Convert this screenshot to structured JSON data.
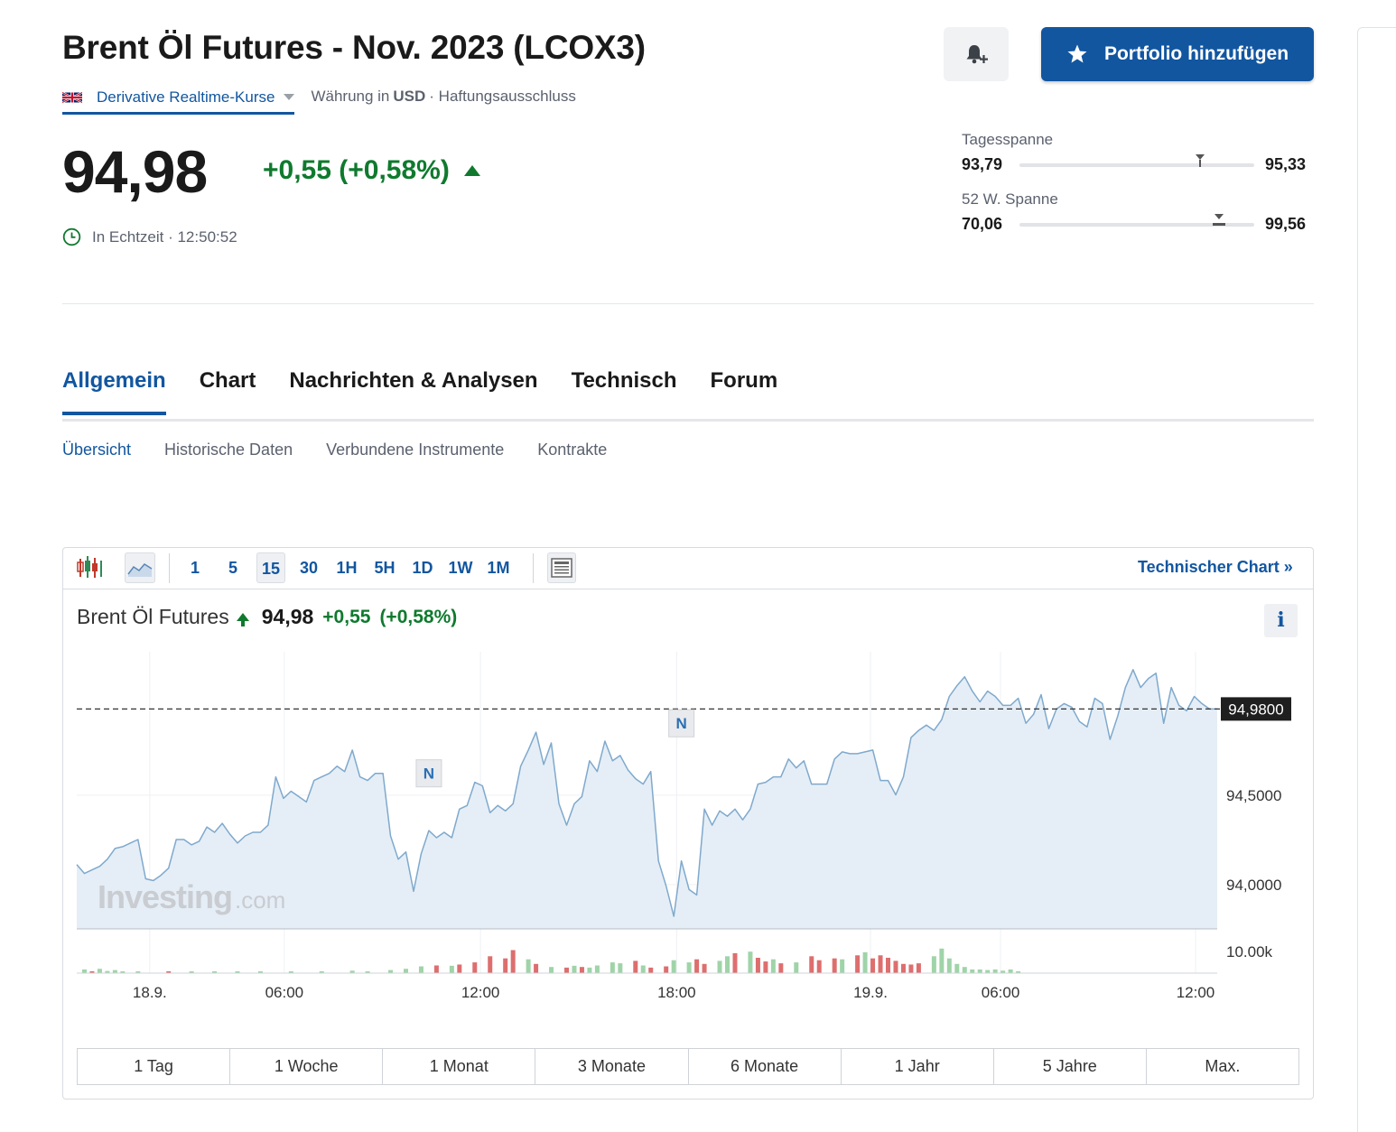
{
  "header": {
    "title": "Brent Öl Futures - Nov. 2023 (LCOX3)",
    "realtime_label": "Derivative Realtime-Kurse",
    "currency_prefix": "Währung in",
    "currency": "USD",
    "disclaimer": "· Haftungsausschluss",
    "portfolio_button": "Portfolio hinzufügen"
  },
  "quote": {
    "price": "94,98",
    "change": "+0,55 (+0,58%)",
    "realtime_text": "In Echtzeit · 12:50:52"
  },
  "ranges": {
    "day": {
      "label": "Tagesspanne",
      "low": "93,79",
      "high": "95,33",
      "marker_fraction": 0.77
    },
    "week52": {
      "label": "52 W. Spanne",
      "low": "70,06",
      "high": "99,56",
      "marker_fraction": 0.85
    }
  },
  "tabs": [
    "Allgemein",
    "Chart",
    "Nachrichten & Analysen",
    "Technisch",
    "Forum"
  ],
  "subtabs": [
    "Übersicht",
    "Historische Daten",
    "Verbundene Instrumente",
    "Kontrakte"
  ],
  "chart_toolbar": {
    "timeframes": [
      "1",
      "5",
      "15",
      "30",
      "1H",
      "5H",
      "1D",
      "1W",
      "1M"
    ],
    "selected": "15",
    "technical_link": "Technischer Chart »"
  },
  "chart_header": {
    "name": "Brent Öl Futures",
    "last": "94,98",
    "change": "+0,55",
    "change_pct": "(+0,58%)"
  },
  "range_buttons": [
    "1 Tag",
    "1 Woche",
    "1 Monat",
    "3 Monate",
    "6 Monate",
    "1 Jahr",
    "5 Jahre",
    "Max."
  ],
  "watermark": {
    "brand": "Investing",
    "suffix": ".com"
  },
  "colors": {
    "accent": "#1256a0",
    "positive": "#0f7a2e",
    "negative": "#d9534f",
    "line": "#7fa9cd",
    "area": "#e5eef6"
  },
  "chart_data": {
    "type": "area",
    "x_ticks": [
      "18.9.",
      "06:00",
      "12:00",
      "18:00",
      "19.9.",
      "06:00",
      "12:00"
    ],
    "y_ticks": [
      "94,0000",
      "94,5000"
    ],
    "last_price_label": "94,9800",
    "last_price": 94.98,
    "volume_label": "10.00k",
    "news_markers": [
      "N",
      "N"
    ],
    "ylim": [
      93.75,
      95.3
    ],
    "values": [
      94.11,
      94.06,
      94.08,
      94.1,
      94.14,
      94.2,
      94.21,
      94.23,
      94.25,
      94.03,
      94.02,
      94.05,
      94.09,
      94.25,
      94.25,
      94.22,
      94.24,
      94.32,
      94.29,
      94.34,
      94.28,
      94.23,
      94.27,
      94.29,
      94.29,
      94.33,
      94.6,
      94.48,
      94.52,
      94.49,
      94.46,
      94.58,
      94.6,
      94.62,
      94.66,
      94.63,
      94.75,
      94.6,
      94.58,
      94.62,
      94.62,
      94.27,
      94.14,
      94.18,
      93.96,
      94.17,
      94.3,
      94.26,
      94.29,
      94.26,
      94.42,
      94.44,
      94.57,
      94.55,
      94.4,
      94.44,
      94.41,
      94.45,
      94.66,
      94.75,
      94.85,
      94.67,
      94.79,
      94.45,
      94.33,
      94.45,
      94.49,
      94.69,
      94.63,
      94.8,
      94.69,
      94.72,
      94.64,
      94.59,
      94.56,
      94.63,
      94.13,
      93.99,
      93.82,
      94.13,
      93.97,
      93.94,
      94.42,
      94.33,
      94.41,
      94.38,
      94.42,
      94.36,
      94.42,
      94.56,
      94.57,
      94.6,
      94.6,
      94.7,
      94.65,
      94.69,
      94.56,
      94.56,
      94.56,
      94.7,
      94.74,
      94.73,
      94.73,
      94.74,
      94.75,
      94.58,
      94.58,
      94.5,
      94.6,
      94.82,
      94.86,
      94.89,
      94.86,
      94.92,
      95.05,
      95.11,
      95.16,
      95.08,
      95.02,
      95.08,
      95.05,
      95.0,
      95.0,
      95.04,
      94.9,
      94.95,
      95.06,
      94.87,
      94.98,
      95.01,
      94.99,
      94.91,
      94.88,
      95.04,
      95.01,
      94.81,
      94.94,
      95.1,
      95.2,
      95.1,
      95.15,
      95.18,
      94.9,
      95.1,
      95.0,
      94.97,
      95.05,
      95.01,
      94.98,
      94.98
    ],
    "volumes": [
      [
        1,
        0.12,
        1
      ],
      [
        2,
        0.06,
        0
      ],
      [
        3,
        0.14,
        1
      ],
      [
        4,
        0.07,
        1
      ],
      [
        5,
        0.1,
        1
      ],
      [
        6,
        0.05,
        1
      ],
      [
        8,
        0.04,
        1
      ],
      [
        12,
        0.06,
        0
      ],
      [
        15,
        0.05,
        1
      ],
      [
        18,
        0.04,
        1
      ],
      [
        21,
        0.04,
        1
      ],
      [
        24,
        0.04,
        1
      ],
      [
        28,
        0.05,
        1
      ],
      [
        32,
        0.06,
        1
      ],
      [
        36,
        0.08,
        1
      ],
      [
        38,
        0.05,
        1
      ],
      [
        41,
        0.1,
        1
      ],
      [
        43,
        0.14,
        1
      ],
      [
        45,
        0.22,
        1
      ],
      [
        47,
        0.25,
        0
      ],
      [
        49,
        0.24,
        1
      ],
      [
        50,
        0.28,
        0
      ],
      [
        52,
        0.35,
        0
      ],
      [
        54,
        0.55,
        0
      ],
      [
        56,
        0.48,
        0
      ],
      [
        57,
        0.75,
        0
      ],
      [
        59,
        0.45,
        1
      ],
      [
        60,
        0.3,
        0
      ],
      [
        62,
        0.2,
        1
      ],
      [
        64,
        0.18,
        0
      ],
      [
        65,
        0.24,
        1
      ],
      [
        66,
        0.2,
        0
      ],
      [
        67,
        0.18,
        1
      ],
      [
        68,
        0.25,
        1
      ],
      [
        70,
        0.35,
        1
      ],
      [
        71,
        0.32,
        1
      ],
      [
        73,
        0.4,
        0
      ],
      [
        74,
        0.25,
        1
      ],
      [
        75,
        0.18,
        0
      ],
      [
        77,
        0.22,
        0
      ],
      [
        78,
        0.42,
        1
      ],
      [
        80,
        0.35,
        1
      ],
      [
        81,
        0.45,
        0
      ],
      [
        82,
        0.3,
        0
      ],
      [
        84,
        0.4,
        1
      ],
      [
        85,
        0.55,
        1
      ],
      [
        86,
        0.65,
        0
      ],
      [
        88,
        0.7,
        1
      ],
      [
        89,
        0.5,
        0
      ],
      [
        90,
        0.38,
        0
      ],
      [
        91,
        0.45,
        1
      ],
      [
        92,
        0.32,
        0
      ],
      [
        94,
        0.35,
        1
      ],
      [
        96,
        0.55,
        0
      ],
      [
        97,
        0.42,
        0
      ],
      [
        99,
        0.48,
        0
      ],
      [
        100,
        0.45,
        1
      ],
      [
        102,
        0.58,
        0
      ],
      [
        103,
        0.68,
        1
      ],
      [
        104,
        0.48,
        0
      ],
      [
        105,
        0.58,
        0
      ],
      [
        106,
        0.5,
        0
      ],
      [
        107,
        0.4,
        0
      ],
      [
        108,
        0.3,
        0
      ],
      [
        109,
        0.28,
        0
      ],
      [
        110,
        0.32,
        0
      ],
      [
        112,
        0.55,
        1
      ],
      [
        113,
        0.8,
        1
      ],
      [
        114,
        0.48,
        1
      ],
      [
        115,
        0.3,
        1
      ],
      [
        116,
        0.2,
        1
      ],
      [
        117,
        0.12,
        1
      ],
      [
        118,
        0.12,
        1
      ],
      [
        119,
        0.1,
        1
      ],
      [
        120,
        0.12,
        1
      ],
      [
        121,
        0.08,
        1
      ],
      [
        122,
        0.12,
        1
      ],
      [
        123,
        0.06,
        1
      ]
    ]
  }
}
